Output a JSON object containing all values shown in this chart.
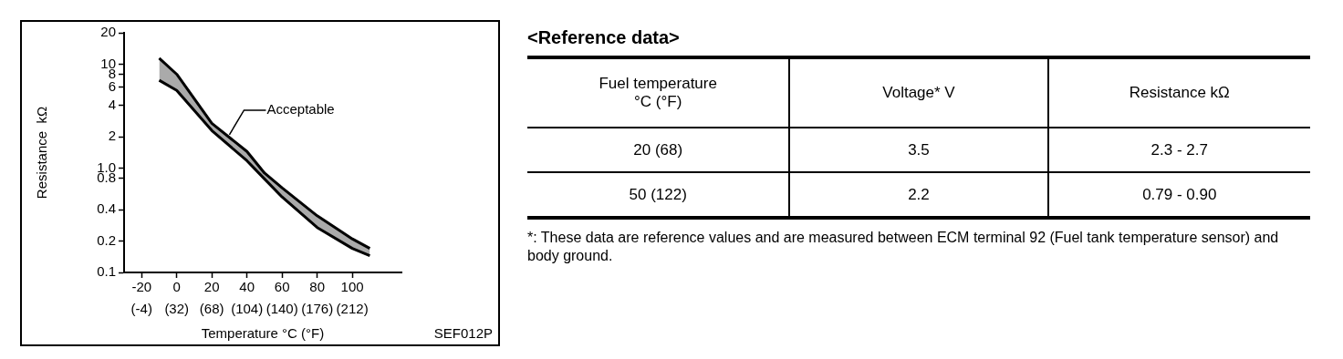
{
  "chart_data": [
    {
      "type": "line",
      "xlabel": "Temperature °C (°F)",
      "ylabel": "Resistance  kΩ",
      "x": [
        -10,
        0,
        20,
        40,
        50,
        60,
        80,
        100,
        110
      ],
      "series": [
        {
          "color": "#000000",
          "values": [
            11.4,
            8.0,
            2.7,
            1.45,
            0.9,
            0.65,
            0.35,
            0.21,
            0.17
          ]
        },
        {
          "color": "#000000",
          "values": [
            7.0,
            5.6,
            2.3,
            1.18,
            0.79,
            0.53,
            0.27,
            0.17,
            0.145
          ],
          "upper": [
            11.4,
            8.0,
            2.7,
            1.45,
            0.9,
            0.65,
            0.35,
            0.21,
            0.17
          ],
          "lower": [
            7.0,
            5.6,
            2.3,
            1.18,
            0.79,
            0.53,
            0.27,
            0.17,
            0.145
          ]
        }
      ],
      "log": "y",
      "xlim": [
        -30,
        128
      ],
      "ylim": [
        0.1,
        20
      ],
      "xticks": [
        -20,
        0,
        20,
        40,
        60,
        80,
        100
      ],
      "x2lim": [
        -22,
        262.4
      ],
      "x2ticks": [
        {
          "value": -4,
          "label": "(-4)"
        },
        {
          "value": 32,
          "label": "(32)"
        },
        {
          "value": 68,
          "label": "(68)"
        },
        {
          "value": 104,
          "label": "(104)"
        },
        {
          "value": 140,
          "label": "(140)"
        },
        {
          "value": 176,
          "label": "(176)"
        },
        {
          "value": 212,
          "label": "(212)"
        }
      ],
      "yticks": [
        0.1,
        0.2,
        0.4,
        0.8,
        {
          "value": 1,
          "label": "1.0"
        },
        2,
        4,
        6,
        8,
        10,
        20
      ],
      "grid": false,
      "legend": false,
      "marker": "none",
      "line_style": "solid",
      "annotations": [
        {
          "text": "Acceptable",
          "x": 30,
          "y": 2.1
        },
        "SEF012P"
      ]
    },
    {
      "type": "other",
      "title": "<Reference data>",
      "annotations": [
        "Fuel temperature °C (°F)",
        "Voltage*    V",
        "Resistance    kΩ",
        "20 (68)",
        "3.5",
        "2.3 - 2.7",
        "50 (122)",
        "2.2",
        "0.79 - 0.90",
        "*: These data are reference values and are measured between ECM terminal 92 (Fuel tank temperature sensor) and body ground."
      ]
    }
  ]
}
